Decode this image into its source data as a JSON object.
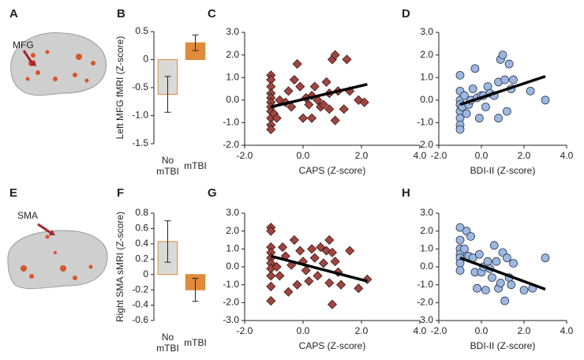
{
  "brain_panels": [
    {
      "panel_label": "A",
      "region": "MFG"
    },
    {
      "panel_label": "E",
      "region": "SMA"
    }
  ],
  "chart_data": [
    {
      "type": "bar",
      "panel_label": "B",
      "ylabel": "Left MFG fMRI (Z-score)",
      "categories": [
        "No mTBI",
        "mTBI"
      ],
      "values": [
        -0.62,
        0.3
      ],
      "errors": [
        0.32,
        0.14
      ],
      "colors": [
        "#d9d9d9",
        "#e08a3c"
      ],
      "edgecolor": "#e08a3c",
      "ylim": [
        -1.5,
        0.5
      ],
      "yticks": [
        -1.5,
        {
          "value": -1,
          "label": "-1.0"
        },
        -0.5,
        0,
        0.5
      ]
    },
    {
      "type": "scatter",
      "panel_label": "C",
      "xlabel": "CAPS (Z-score)",
      "marker": "diamond",
      "color": "#a0453f",
      "edgecolor": "#3a1a18",
      "x": [
        -1.1,
        -1.1,
        -1.1,
        -1.1,
        -1.1,
        -1.1,
        -1.1,
        -1.1,
        -1.1,
        -1.1,
        -1.1,
        -1.0,
        -0.9,
        -0.8,
        -0.6,
        -0.5,
        -0.4,
        -0.3,
        -0.2,
        -0.1,
        0,
        0.1,
        0.2,
        0.3,
        0.3,
        0.4,
        0.5,
        0.6,
        0.7,
        0.8,
        0.9,
        0.9,
        1.0,
        1.1,
        1.1,
        1.2,
        1.4,
        1.5,
        1.6,
        1.9,
        2.1
      ],
      "y": [
        1.1,
        0.9,
        0.6,
        0.3,
        0.1,
        -0.1,
        -0.3,
        -0.5,
        -0.8,
        -1.1,
        -1.3,
        -0.6,
        -0.8,
        0.0,
        -0.1,
        0.4,
        -0.3,
        0.9,
        1.6,
        0.6,
        -0.8,
        0.1,
        -0.2,
        0.2,
        -0.8,
        0.6,
        0.0,
        -0.3,
        -0.2,
        0.8,
        0.3,
        -0.4,
        1.8,
        2.0,
        -0.9,
        0.4,
        -0.4,
        1.8,
        0.4,
        0.0,
        -0.1
      ],
      "trend_line": {
        "x": [
          -1.1,
          2.2
        ],
        "y": [
          -0.3,
          0.7
        ]
      },
      "xlim": [
        -2,
        4
      ],
      "xticks": [
        {
          "value": -2,
          "label": "-2.0"
        },
        {
          "value": 0,
          "label": "0.0"
        },
        {
          "value": 2,
          "label": "2.0"
        },
        {
          "value": 4,
          "label": "4.0"
        }
      ],
      "ylim": [
        -2,
        3
      ],
      "yticks": [
        {
          "value": -2,
          "label": "-2.0"
        },
        {
          "value": -1,
          "label": "-1.0"
        },
        {
          "value": 0,
          "label": "0.0"
        },
        {
          "value": 1,
          "label": "1.0"
        },
        {
          "value": 2,
          "label": "2.0"
        },
        {
          "value": 3,
          "label": "3.0"
        }
      ]
    },
    {
      "type": "scatter",
      "panel_label": "D",
      "xlabel": "BDI-II (Z-score)",
      "marker": "circle",
      "color": "#9db8e0",
      "edgecolor": "#2a3550",
      "x": [
        -1.0,
        -1.0,
        -1.0,
        -1.0,
        -1.0,
        -1.0,
        -1.0,
        -1.0,
        -0.9,
        -0.8,
        -0.7,
        -0.6,
        -0.5,
        -0.4,
        -0.3,
        -0.2,
        -0.1,
        0,
        0.1,
        0.2,
        0.3,
        0.4,
        0.6,
        0.8,
        0.8,
        0.9,
        1.0,
        1.1,
        1.2,
        1.3,
        1.4,
        1.5,
        2.3,
        3.0
      ],
      "y": [
        1.1,
        0.4,
        0.0,
        -0.2,
        -0.5,
        -0.8,
        -1.1,
        -1.3,
        -0.3,
        0.2,
        -0.6,
        -0.2,
        0.0,
        0.5,
        1.4,
        0.1,
        -0.8,
        0.2,
        0.2,
        -0.3,
        0.6,
        0.3,
        0.2,
        0.8,
        -0.8,
        1.8,
        2.0,
        0.9,
        -0.5,
        1.6,
        0.5,
        0.9,
        0.4,
        0.0
      ],
      "trend_line": {
        "x": [
          -1.0,
          3.0
        ],
        "y": [
          -0.2,
          1.05
        ]
      },
      "xlim": [
        -2,
        4
      ],
      "xticks": [
        {
          "value": -2,
          "label": "-2.0"
        },
        {
          "value": 0,
          "label": "0.0"
        },
        {
          "value": 2,
          "label": "2.0"
        },
        {
          "value": 4,
          "label": "4.0"
        }
      ],
      "ylim": [
        -2,
        3
      ],
      "yticks": [
        {
          "value": -2,
          "label": "-2.0"
        },
        {
          "value": -1,
          "label": "-1.0"
        },
        {
          "value": 0,
          "label": "0.0"
        },
        {
          "value": 1,
          "label": "1.0"
        },
        {
          "value": 2,
          "label": "2.0"
        },
        {
          "value": 3,
          "label": "3.0"
        }
      ]
    },
    {
      "type": "bar",
      "panel_label": "F",
      "ylabel": "Right SMA sMRI (Z-score)",
      "categories": [
        "No mTBI",
        "mTBI"
      ],
      "values": [
        0.43,
        -0.2
      ],
      "errors": [
        0.27,
        0.15
      ],
      "colors": [
        "#d9d9d9",
        "#e08a3c"
      ],
      "edgecolor": "#e08a3c",
      "ylim": [
        -0.6,
        0.8
      ],
      "yticks": [
        -0.6,
        -0.4,
        -0.2,
        0,
        0.2,
        0.4,
        0.6,
        0.8
      ]
    },
    {
      "type": "scatter",
      "panel_label": "G",
      "xlabel": "CAPS (Z-score)",
      "marker": "diamond",
      "color": "#a0453f",
      "edgecolor": "#3a1a18",
      "x": [
        -1.1,
        -1.1,
        -1.1,
        -1.1,
        -1.1,
        -1.1,
        -1.1,
        -1.1,
        -1.1,
        -1.1,
        -0.9,
        -0.8,
        -0.7,
        -0.6,
        -0.5,
        -0.4,
        -0.3,
        -0.2,
        -0.1,
        0,
        0.1,
        0.2,
        0.3,
        0.4,
        0.5,
        0.6,
        0.7,
        0.8,
        0.9,
        0.9,
        1.0,
        1.0,
        1.1,
        1.2,
        1.3,
        1.6,
        1.9,
        2.2
      ],
      "y": [
        2.2,
        2.0,
        1.1,
        0.8,
        0.5,
        0.2,
        -0.1,
        -0.5,
        -1.1,
        -1.9,
        0.0,
        -0.5,
        1.1,
        0.6,
        -1.4,
        0.1,
        1.5,
        -1.0,
        0.9,
        0.3,
        -0.2,
        -0.8,
        1.0,
        0.5,
        -0.5,
        1.1,
        0.2,
        0.9,
        -0.9,
        1.5,
        0.8,
        -2.1,
        0.3,
        -0.3,
        -1.0,
        0.9,
        -1.2,
        -0.7
      ],
      "trend_line": {
        "x": [
          -1.1,
          2.2
        ],
        "y": [
          0.6,
          -0.8
        ]
      },
      "xlim": [
        -2,
        4
      ],
      "xticks": [
        {
          "value": -2,
          "label": "-2.0"
        },
        {
          "value": 0,
          "label": "0.0"
        },
        {
          "value": 2,
          "label": "2.0"
        },
        {
          "value": 4,
          "label": "4.0"
        }
      ],
      "ylim": [
        -3,
        3
      ],
      "yticks": [
        {
          "value": -3,
          "label": "-3.0"
        },
        {
          "value": -2,
          "label": "-2.0"
        },
        {
          "value": -1,
          "label": "-1.0"
        },
        {
          "value": 0,
          "label": "0.0"
        },
        {
          "value": 1,
          "label": "1.0"
        },
        {
          "value": 2,
          "label": "2.0"
        },
        {
          "value": 3,
          "label": "3.0"
        }
      ]
    },
    {
      "type": "scatter",
      "panel_label": "H",
      "xlabel": "BDI-II (Z-score)",
      "marker": "circle",
      "color": "#9db8e0",
      "edgecolor": "#2a3550",
      "x": [
        -1.0,
        -1.0,
        -1.0,
        -1.0,
        -1.0,
        -1.0,
        -1.0,
        -0.8,
        -0.7,
        -0.6,
        -0.5,
        -0.4,
        -0.3,
        -0.2,
        -0.1,
        0,
        0.1,
        0.2,
        0.3,
        0.4,
        0.5,
        0.6,
        0.7,
        0.8,
        0.9,
        1.0,
        1.1,
        1.2,
        1.3,
        1.4,
        1.5,
        2.0,
        2.4,
        3.0
      ],
      "y": [
        2.2,
        1.5,
        1.0,
        0.7,
        0.5,
        0.2,
        -0.2,
        1.0,
        2.0,
        0.6,
        1.7,
        0.5,
        -0.3,
        -1.2,
        0.7,
        -0.3,
        0.0,
        -1.3,
        0.3,
        -0.1,
        -0.6,
        1.2,
        0.3,
        -1.2,
        -0.9,
        0.8,
        -1.9,
        0.5,
        -0.6,
        -1.0,
        0.2,
        -1.3,
        -1.2,
        0.5
      ],
      "trend_line": {
        "x": [
          -1.0,
          3.0
        ],
        "y": [
          0.5,
          -1.25
        ]
      },
      "xlim": [
        -2,
        4
      ],
      "xticks": [
        {
          "value": -2,
          "label": "-2.0"
        },
        {
          "value": 0,
          "label": "0.0"
        },
        {
          "value": 2,
          "label": "2.0"
        },
        {
          "value": 4,
          "label": "4.0"
        }
      ],
      "ylim": [
        -3,
        3
      ],
      "yticks": [
        {
          "value": -3,
          "label": "-3.0"
        },
        {
          "value": -2,
          "label": "-2.0"
        },
        {
          "value": -1,
          "label": "-1.0"
        },
        {
          "value": 0,
          "label": "0.0"
        },
        {
          "value": 1,
          "label": "1.0"
        },
        {
          "value": 2,
          "label": "2.0"
        },
        {
          "value": 3,
          "label": "3.0"
        }
      ]
    }
  ]
}
